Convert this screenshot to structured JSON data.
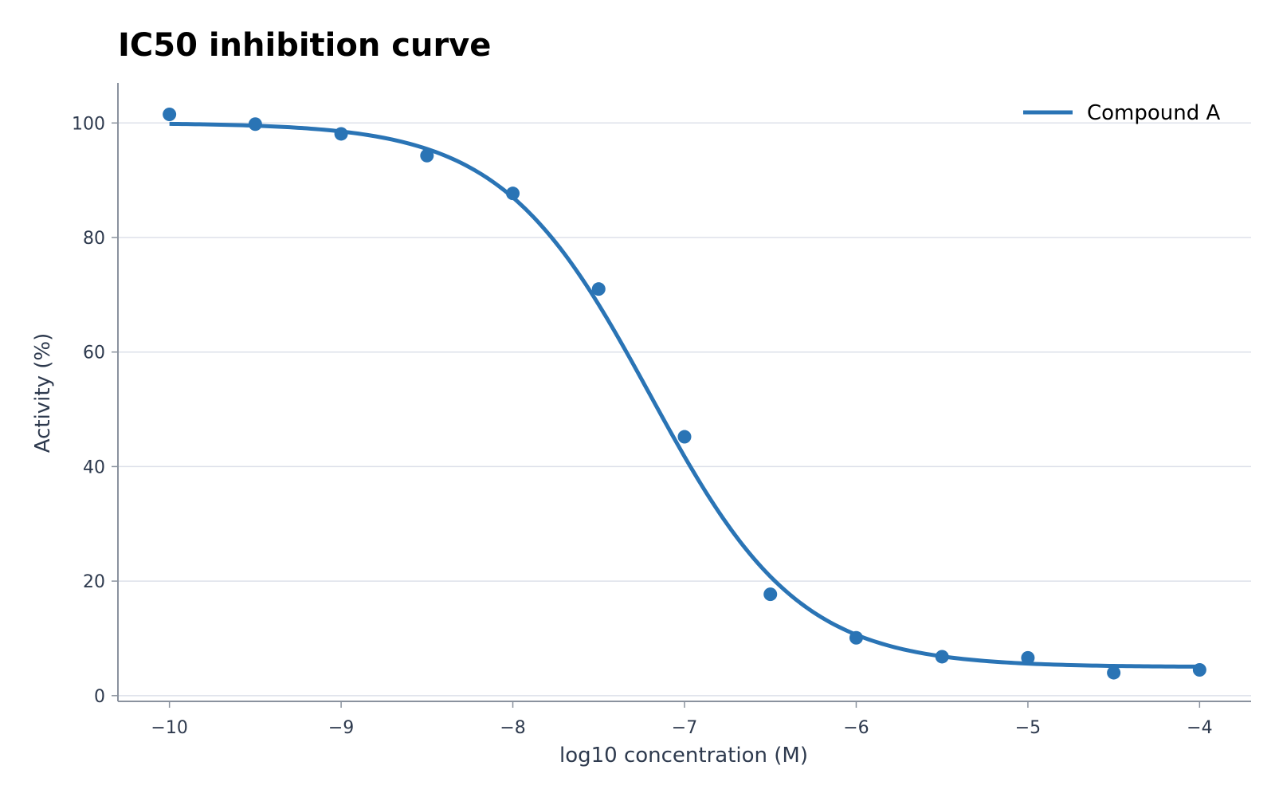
{
  "chart_data": {
    "type": "scatter",
    "title": "IC50 inhibition curve",
    "xlabel": "log10 concentration (M)",
    "ylabel": "Activity (%)",
    "xlim": [
      -10.3,
      -3.7
    ],
    "ylim": [
      -1,
      107
    ],
    "x_ticks": [
      -10,
      -9,
      -8,
      -7,
      -6,
      -5,
      -4
    ],
    "x_tick_labels": [
      "−10",
      "−9",
      "−8",
      "−7",
      "−6",
      "−5",
      "−4"
    ],
    "y_ticks": [
      0,
      20,
      40,
      60,
      80,
      100
    ],
    "y_tick_labels": [
      "0",
      "20",
      "40",
      "60",
      "80",
      "100"
    ],
    "grid": "horizontal",
    "legend_position": "top-right",
    "colors": {
      "series": "#2a74b5",
      "grid": "#dde1ea",
      "axis": "#8a929e",
      "text": "#2e3a4e"
    },
    "points": {
      "x": [
        -10,
        -9.5,
        -9,
        -8.5,
        -8,
        -7.5,
        -7,
        -6.5,
        -6,
        -5.5,
        -5,
        -4.5,
        -4
      ],
      "y": [
        101.5,
        99.8,
        98.1,
        94.3,
        87.7,
        71.0,
        45.2,
        17.7,
        10.1,
        6.8,
        6.6,
        4.0,
        4.5
      ]
    },
    "fit": {
      "name": "Compound A",
      "model": "4PL",
      "bottom": 5,
      "top": 100,
      "log_ic50": -7.2,
      "hill_slope": 1.0,
      "x_range": [
        -10,
        -4
      ]
    }
  }
}
